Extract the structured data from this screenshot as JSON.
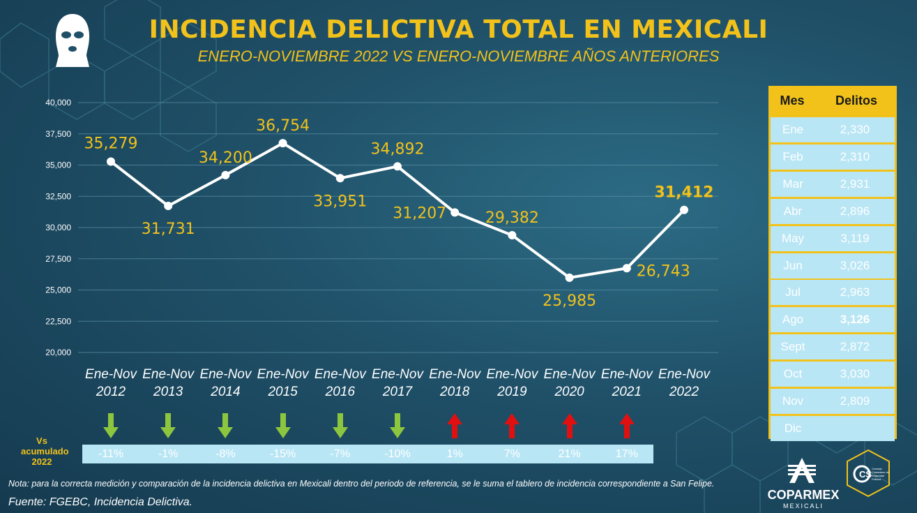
{
  "header": {
    "title": "INCIDENCIA DELICTIVA TOTAL EN MEXICALI",
    "subtitle": "ENERO-NOVIEMBRE 2022 VS ENERO-NOVIEMBRE AÑOS ANTERIORES",
    "icon": "ski-mask-icon"
  },
  "chart_data": {
    "type": "line",
    "title": "INCIDENCIA DELICTIVA TOTAL EN MEXICALI",
    "subtitle": "ENERO-NOVIEMBRE 2022 VS ENERO-NOVIEMBRE AÑOS ANTERIORES",
    "categories": [
      [
        "Ene-Nov",
        "2012"
      ],
      [
        "Ene-Nov",
        "2013"
      ],
      [
        "Ene-Nov",
        "2014"
      ],
      [
        "Ene-Nov",
        "2015"
      ],
      [
        "Ene-Nov",
        "2016"
      ],
      [
        "Ene-Nov",
        "2017"
      ],
      [
        "Ene-Nov",
        "2018"
      ],
      [
        "Ene-Nov",
        "2019"
      ],
      [
        "Ene-Nov",
        "2020"
      ],
      [
        "Ene-Nov",
        "2021"
      ],
      [
        "Ene-Nov",
        "2022"
      ]
    ],
    "values": [
      35279,
      31731,
      34200,
      36754,
      33951,
      34892,
      31207,
      29382,
      25985,
      26743,
      31412
    ],
    "value_labels": [
      "35,279",
      "31,731",
      "34,200",
      "36,754",
      "33,951",
      "34,892",
      "31,207",
      "29,382",
      "25,985",
      "26,743",
      "31,412"
    ],
    "label_positions": [
      "above",
      "below",
      "above",
      "above",
      "below",
      "above",
      "left",
      "above",
      "below",
      "right",
      "above"
    ],
    "ylim": [
      20000,
      40000
    ],
    "yticks": [
      "20,000",
      "22,500",
      "25,000",
      "27,500",
      "30,000",
      "32,500",
      "35,000",
      "37,500",
      "40,000"
    ],
    "ytick_values": [
      20000,
      22500,
      25000,
      27500,
      30000,
      32500,
      35000,
      37500,
      40000
    ],
    "grid": true,
    "line_color": "#ffffff",
    "label_color": "#f2c21b"
  },
  "comparison": {
    "label": [
      "Vs",
      "acumulado",
      "2022"
    ],
    "items": [
      {
        "pct": "-11%",
        "direction": "down"
      },
      {
        "pct": "-1%",
        "direction": "down"
      },
      {
        "pct": "-8%",
        "direction": "down"
      },
      {
        "pct": "-15%",
        "direction": "down"
      },
      {
        "pct": "-7%",
        "direction": "down"
      },
      {
        "pct": "-10%",
        "direction": "down"
      },
      {
        "pct": "1%",
        "direction": "up"
      },
      {
        "pct": "7%",
        "direction": "up"
      },
      {
        "pct": "21%",
        "direction": "up"
      },
      {
        "pct": "17%",
        "direction": "up"
      }
    ],
    "down_color": "#8cc63f",
    "up_color": "#e01010"
  },
  "monthly_table": {
    "headers": {
      "month": "Mes",
      "crimes": "Delitos"
    },
    "rows": [
      {
        "month": "Ene",
        "crimes": "2,330"
      },
      {
        "month": "Feb",
        "crimes": "2,310"
      },
      {
        "month": "Mar",
        "crimes": "2,931"
      },
      {
        "month": "Abr",
        "crimes": "2,896"
      },
      {
        "month": "May",
        "crimes": "3,119"
      },
      {
        "month": "Jun",
        "crimes": "3,026"
      },
      {
        "month": "Jul",
        "crimes": "2,963"
      },
      {
        "month": "Ago",
        "crimes": "3,126",
        "highlight": true
      },
      {
        "month": "Sept",
        "crimes": "2,872"
      },
      {
        "month": "Oct",
        "crimes": "3,030"
      },
      {
        "month": "Nov",
        "crimes": "2,809"
      },
      {
        "month": "Dic",
        "crimes": ""
      }
    ]
  },
  "footer": {
    "note": "Nota: para la correcta medición y comparación de la incidencia delictiva en Mexicali dentro del periodo de referencia, se le suma el tablero de incidencia correspondiente a San Felipe.",
    "source": "Fuente: FGEBC, Incidencia Delictiva.",
    "logo_name": "COPARMEX",
    "logo_city": "MEXICALI",
    "partner_logo_text": "Consejo Ciudadano de Seguridad Pública"
  },
  "colors": {
    "background": "#1f5068",
    "accent": "#f2c21b",
    "table_cell": "#b9e6f5"
  }
}
